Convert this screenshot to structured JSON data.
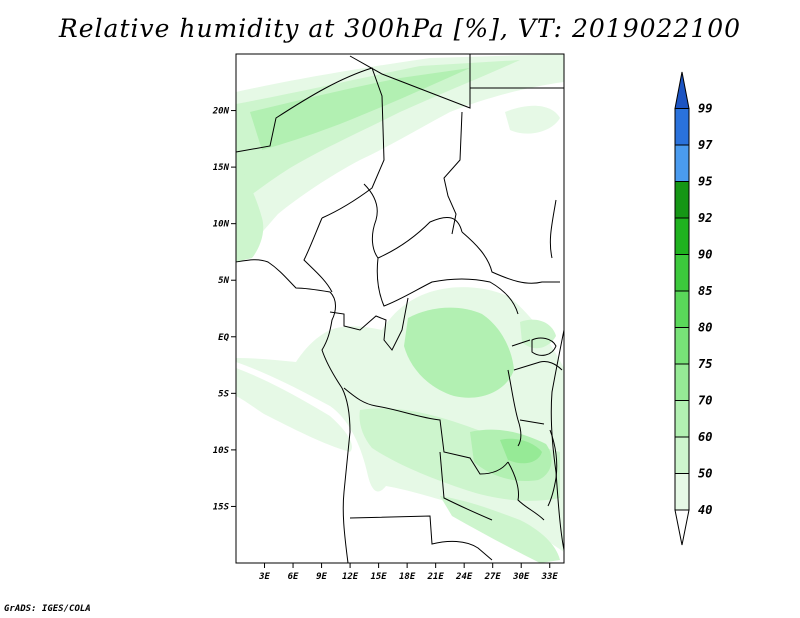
{
  "title": "Relative humidity at 300hPa [%], VT: 2019022100",
  "credit": "GrADS: IGES/COLA",
  "map": {
    "lon_range": [
      0,
      34.5
    ],
    "lat_range": [
      -20,
      25
    ],
    "lat_ticks": [
      {
        "value": 20,
        "label": "20N"
      },
      {
        "value": 15,
        "label": "15N"
      },
      {
        "value": 10,
        "label": "10N"
      },
      {
        "value": 5,
        "label": "5N"
      },
      {
        "value": 0,
        "label": "EQ"
      },
      {
        "value": -5,
        "label": "5S"
      },
      {
        "value": -10,
        "label": "10S"
      },
      {
        "value": -15,
        "label": "15S"
      }
    ],
    "lon_ticks": [
      {
        "value": 3,
        "label": "3E"
      },
      {
        "value": 6,
        "label": "6E"
      },
      {
        "value": 9,
        "label": "9E"
      },
      {
        "value": 12,
        "label": "12E"
      },
      {
        "value": 15,
        "label": "15E"
      },
      {
        "value": 18,
        "label": "18E"
      },
      {
        "value": 21,
        "label": "21E"
      },
      {
        "value": 24,
        "label": "24E"
      },
      {
        "value": 27,
        "label": "27E"
      },
      {
        "value": 30,
        "label": "30E"
      },
      {
        "value": 33,
        "label": "33E"
      }
    ]
  },
  "colorbar": {
    "levels": [
      "40",
      "50",
      "60",
      "70",
      "75",
      "80",
      "85",
      "90",
      "92",
      "95",
      "97",
      "99"
    ],
    "colors": [
      "#ffffff",
      "#e6f9e6",
      "#cdf5cd",
      "#b2f0b2",
      "#96ea96",
      "#78e278",
      "#5ad85a",
      "#3cc93c",
      "#1fb21f",
      "#159615",
      "#4a9bef",
      "#2a72dc",
      "#1c54c2"
    ]
  },
  "humidity_palette": {
    "light": "#e6f9e6",
    "pale": "#cdf5cd",
    "mid": "#b2f0b2",
    "strong": "#96ea96",
    "deep": "#78e278"
  }
}
